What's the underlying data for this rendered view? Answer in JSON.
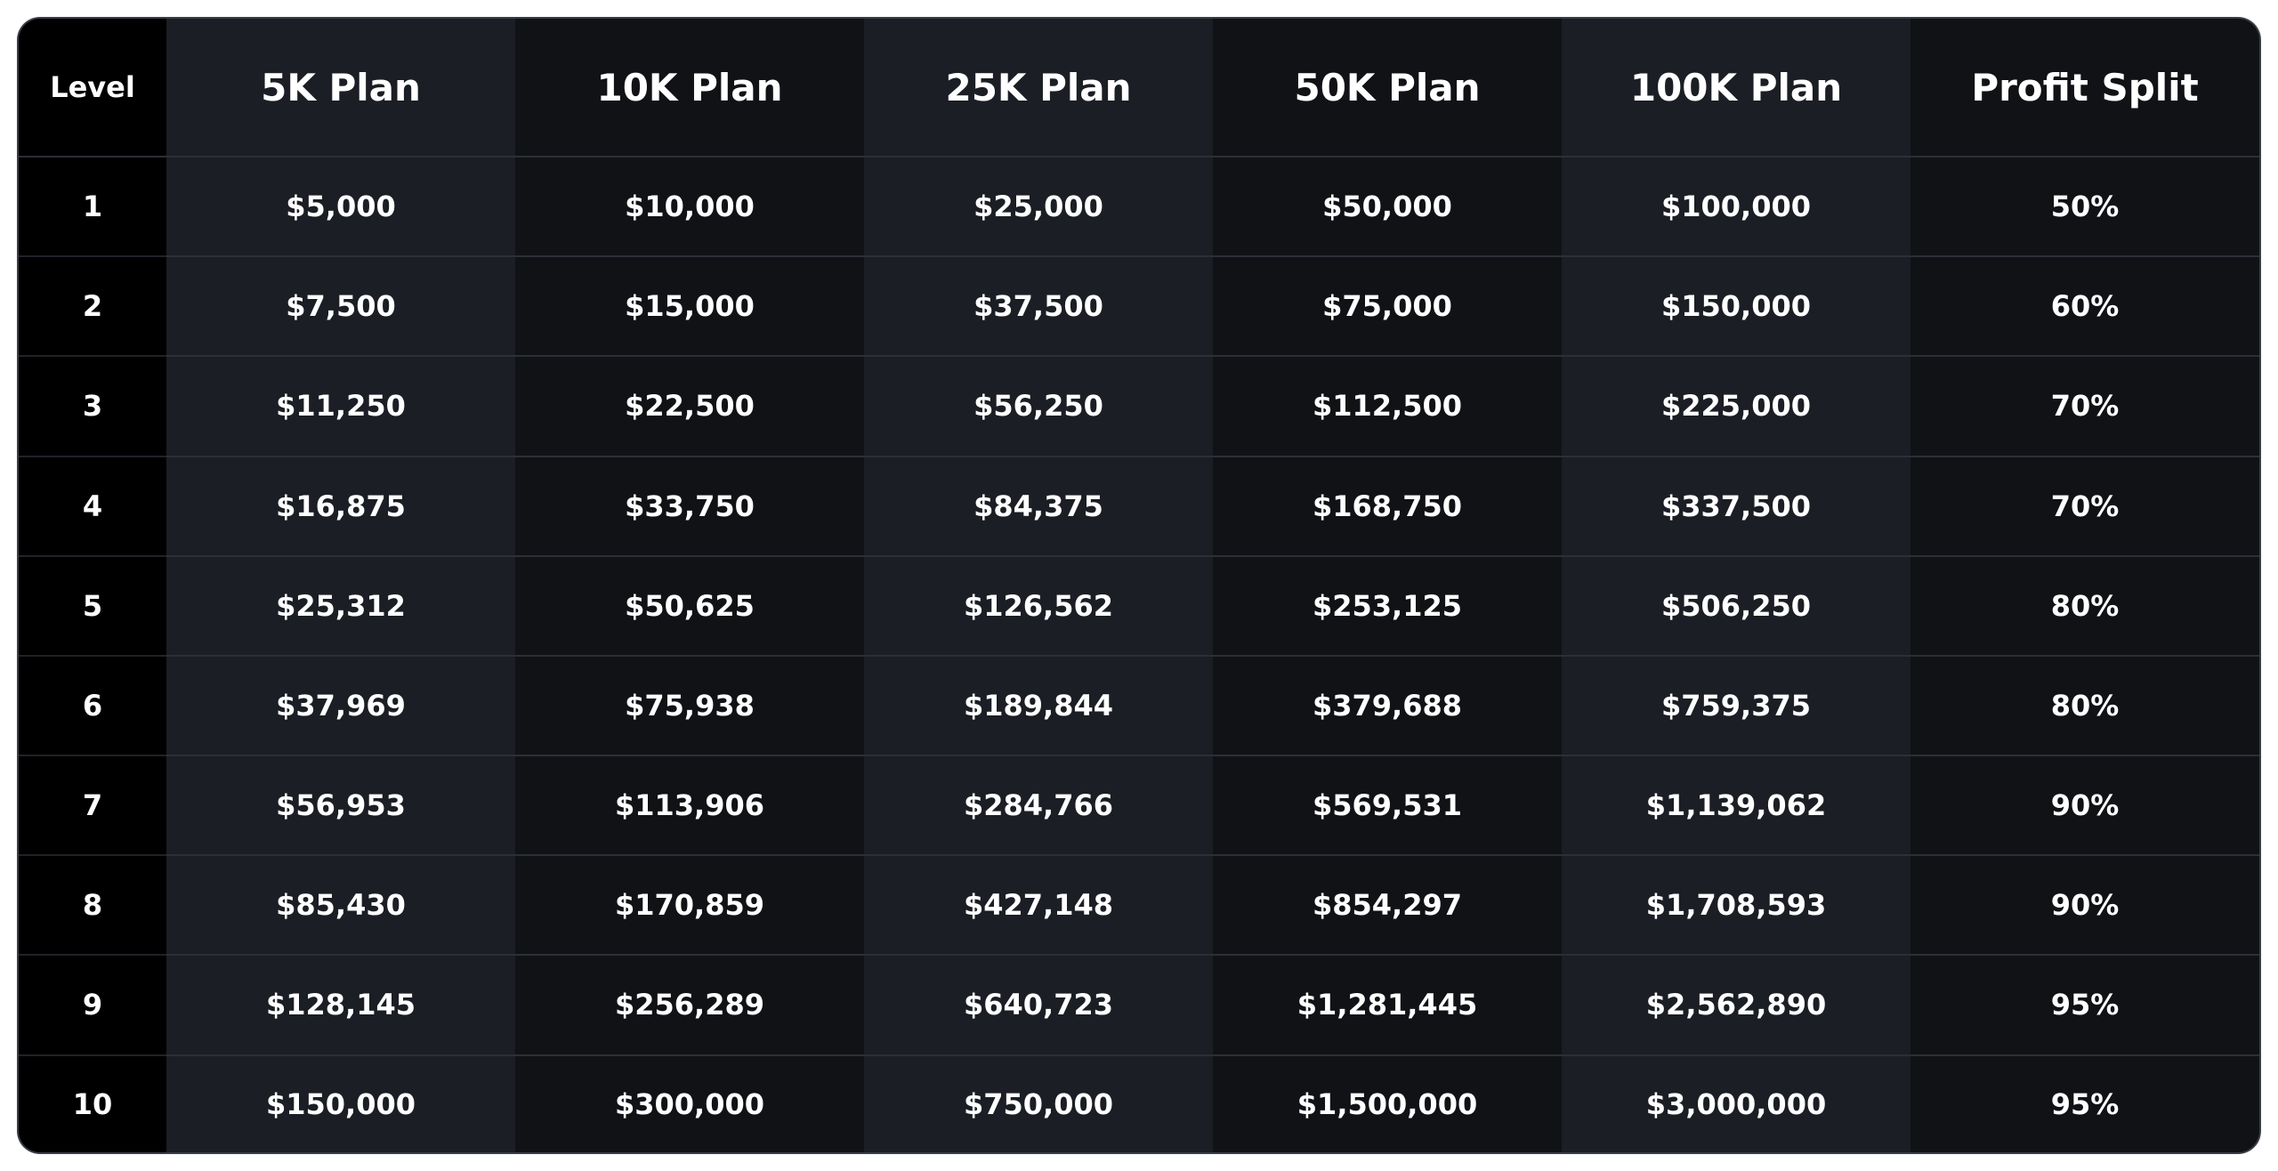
{
  "table": {
    "headers": [
      "Level",
      "5K Plan",
      "10K Plan",
      "25K Plan",
      "50K Plan",
      "100K Plan",
      "Profit Split"
    ],
    "rows": [
      [
        "1",
        "$5,000",
        "$10,000",
        "$25,000",
        "$50,000",
        "$100,000",
        "50%"
      ],
      [
        "2",
        "$7,500",
        "$15,000",
        "$37,500",
        "$75,000",
        "$150,000",
        "60%"
      ],
      [
        "3",
        "$11,250",
        "$22,500",
        "$56,250",
        "$112,500",
        "$225,000",
        "70%"
      ],
      [
        "4",
        "$16,875",
        "$33,750",
        "$84,375",
        "$168,750",
        "$337,500",
        "70%"
      ],
      [
        "5",
        "$25,312",
        "$50,625",
        "$126,562",
        "$253,125",
        "$506,250",
        "80%"
      ],
      [
        "6",
        "$37,969",
        "$75,938",
        "$189,844",
        "$379,688",
        "$759,375",
        "80%"
      ],
      [
        "7",
        "$56,953",
        "$113,906",
        "$284,766",
        "$569,531",
        "$1,139,062",
        "90%"
      ],
      [
        "8",
        "$85,430",
        "$170,859",
        "$427,148",
        "$854,297",
        "$1,708,593",
        "90%"
      ],
      [
        "9",
        "$128,145",
        "$256,289",
        "$640,723",
        "$1,281,445",
        "$2,562,890",
        "95%"
      ],
      [
        "10",
        "$150,000",
        "$300,000",
        "$750,000",
        "$1,500,000",
        "$3,000,000",
        "95%"
      ]
    ]
  },
  "colors": {
    "level_column": "#000000",
    "column_light": "#1b1e24",
    "column_dark": "#111216",
    "text": "#ffffff",
    "row_divider": "#2c2f36"
  }
}
